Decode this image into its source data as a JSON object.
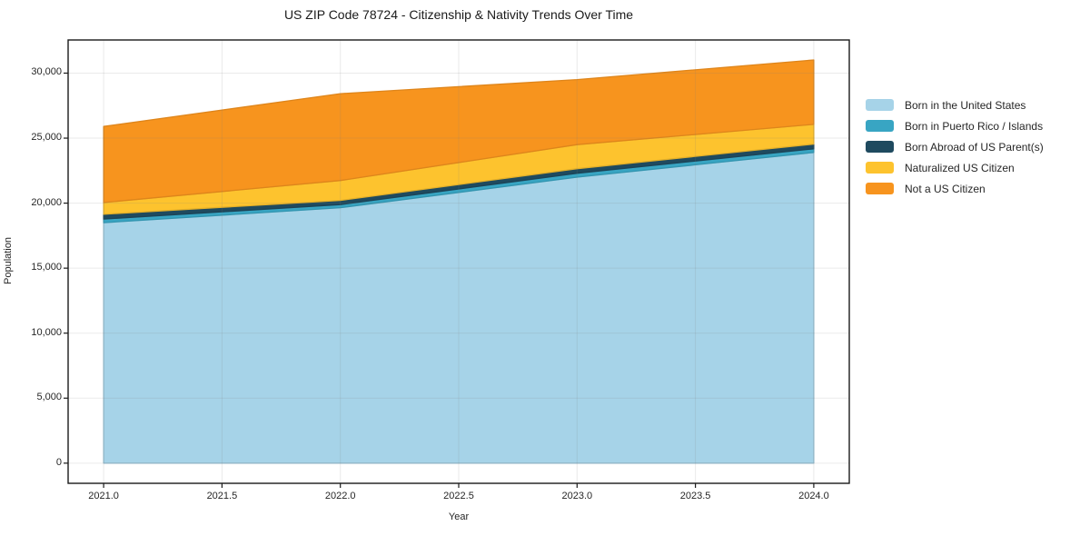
{
  "chart_data": {
    "type": "area",
    "stacked": true,
    "title": "US ZIP Code 78724 - Citizenship & Nativity Trends Over Time",
    "xlabel": "Year",
    "ylabel": "Population",
    "x": [
      2021,
      2022,
      2023,
      2024
    ],
    "series": [
      {
        "name": "Born in the United States",
        "color": "#a6d3e8",
        "values": [
          18500,
          19650,
          22000,
          23900
        ]
      },
      {
        "name": "Born in Puerto Rico / Islands",
        "color": "#38a5c3",
        "values": [
          280,
          240,
          300,
          280
        ]
      },
      {
        "name": "Born Abroad of US Parent(s)",
        "color": "#1f4a5f",
        "values": [
          370,
          320,
          350,
          360
        ]
      },
      {
        "name": "Naturalized US Citizen",
        "color": "#fdc32e",
        "values": [
          900,
          1530,
          1850,
          1520
        ]
      },
      {
        "name": "Not a US Citizen",
        "color": "#f7941e",
        "values": [
          5850,
          6680,
          5000,
          4950
        ]
      }
    ],
    "totals": [
      25900,
      28420,
      29500,
      31010
    ],
    "xlim": [
      2020.85,
      2024.15
    ],
    "ylim": [
      -1550,
      32550
    ],
    "x_ticks": {
      "values": [
        2021.0,
        2021.5,
        2022.0,
        2022.5,
        2023.0,
        2023.5,
        2024.0
      ],
      "labels": [
        "2021.0",
        "2021.5",
        "2022.0",
        "2022.5",
        "2023.0",
        "2023.5",
        "2024.0"
      ]
    },
    "y_ticks": {
      "values": [
        0,
        5000,
        10000,
        15000,
        20000,
        25000,
        30000
      ],
      "labels": [
        "0",
        "5,000",
        "10,000",
        "15,000",
        "20,000",
        "25,000",
        "30,000"
      ]
    },
    "grid": true,
    "legend_position": "center-right-outside"
  }
}
